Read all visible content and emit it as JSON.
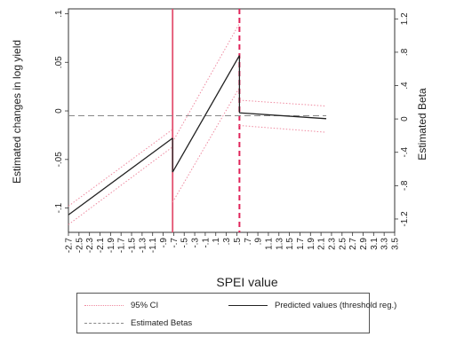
{
  "chart_data": {
    "type": "line",
    "title": "",
    "xlabel": "SPEI value",
    "ylabel_left": "Estimated changes in log yield",
    "ylabel_right": "Estimated Beta",
    "xlim": [
      -2.7,
      3.5
    ],
    "ylim_left": [
      -0.125,
      0.105
    ],
    "ylim_right": [
      -1.36,
      1.32
    ],
    "x_ticks": [
      -2.7,
      -2.5,
      -2.3,
      -2.1,
      -1.9,
      -1.7,
      -1.5,
      -1.3,
      -1.1,
      -0.9,
      -0.7,
      -0.5,
      -0.3,
      -0.1,
      0.1,
      0.3,
      0.5,
      0.7,
      0.9,
      1.1,
      1.3,
      1.5,
      1.7,
      1.9,
      2.1,
      2.3,
      2.5,
      2.7,
      2.9,
      3.1,
      3.3,
      3.5
    ],
    "x_tick_labels": [
      "-2.7",
      "-2.5",
      "-2.3",
      "-2.1",
      "-1.9",
      "-1.7",
      "-1.5",
      "-1.3",
      "-1.1",
      "-.9",
      "-.7",
      "-.5",
      "-.3",
      "-.1",
      ".1",
      ".3",
      ".5",
      ".7",
      ".9",
      "1.1",
      "1.3",
      "1.5",
      "1.7",
      "1.9",
      "2.1",
      "2.3",
      "2.5",
      "2.7",
      "2.9",
      "3.1",
      "3.3",
      "3.5"
    ],
    "y_left_ticks": [
      -0.1,
      -0.05,
      0,
      0.05,
      0.1
    ],
    "y_left_tick_labels": [
      "-.1",
      "-.05",
      "0",
      ".05",
      ".1"
    ],
    "y_right_ticks": [
      -1.2,
      -0.8,
      -0.4,
      0,
      0.4,
      0.8,
      1.2
    ],
    "y_right_tick_labels": [
      "-1.2",
      "-.8",
      "-.4",
      "0",
      ".4",
      ".8",
      "1.2"
    ],
    "thresholds": [
      {
        "x": -0.72,
        "style": "solid",
        "color": "#e3506f"
      },
      {
        "x": 0.55,
        "style": "dashed",
        "color": "#e0245a"
      }
    ],
    "series": [
      {
        "name": "Predicted values (threshold reg.)",
        "color": "#222222",
        "dash": "solid",
        "segments": [
          [
            [
              -2.7,
              -0.107
            ],
            [
              -0.72,
              -0.028
            ]
          ],
          [
            [
              -0.72,
              -0.063
            ],
            [
              0.55,
              0.057
            ]
          ],
          [
            [
              0.55,
              -0.002
            ],
            [
              2.2,
              -0.008
            ]
          ]
        ]
      },
      {
        "name": "95% CI",
        "color": "#ef8aa0",
        "dash": "dotted",
        "segments": [
          [
            [
              -2.7,
              -0.098
            ],
            [
              -0.72,
              -0.019
            ]
          ],
          [
            [
              -2.7,
              -0.117
            ],
            [
              -0.72,
              -0.037
            ]
          ],
          [
            [
              -0.72,
              -0.032
            ],
            [
              0.55,
              0.09
            ]
          ],
          [
            [
              -0.72,
              -0.094
            ],
            [
              0.55,
              0.024
            ]
          ],
          [
            [
              0.55,
              0.011
            ],
            [
              2.2,
              0.005
            ]
          ],
          [
            [
              0.55,
              -0.015
            ],
            [
              2.2,
              -0.022
            ]
          ]
        ]
      },
      {
        "name": "Estimated Betas",
        "color": "#888888",
        "dash": "dashed",
        "segments": [
          [
            [
              -2.7,
              -0.005
            ],
            [
              2.2,
              -0.005
            ]
          ]
        ]
      }
    ],
    "legend": {
      "placement": "bottom",
      "entries": [
        "95% CI",
        "Predicted values (threshold reg.)",
        "Estimated Betas"
      ]
    }
  }
}
